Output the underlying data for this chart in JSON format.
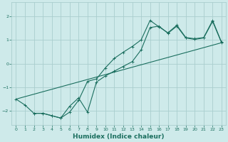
{
  "bg_color": "#ceeaea",
  "grid_color": "#aacece",
  "line_color": "#1a6e5e",
  "xlabel": "Humidex (Indice chaleur)",
  "xlabel_fontsize": 6.5,
  "xlim": [
    -0.5,
    23.5
  ],
  "ylim": [
    -2.6,
    2.6
  ],
  "xticks": [
    0,
    1,
    2,
    3,
    4,
    5,
    6,
    7,
    8,
    9,
    10,
    11,
    12,
    13,
    14,
    15,
    16,
    17,
    18,
    19,
    20,
    21,
    22,
    23
  ],
  "yticks": [
    -2,
    -1,
    0,
    1,
    2
  ],
  "line1_x": [
    0,
    1,
    2,
    3,
    4,
    5,
    6,
    7,
    8,
    9,
    10,
    11,
    12,
    13,
    14,
    15,
    16,
    17,
    18,
    19,
    20,
    21,
    22,
    23
  ],
  "line1_y": [
    -1.5,
    -1.75,
    -2.1,
    -2.1,
    -2.2,
    -2.3,
    -2.05,
    -1.55,
    -0.75,
    -0.65,
    -0.18,
    0.22,
    0.48,
    0.72,
    1.0,
    1.82,
    1.55,
    1.3,
    1.62,
    1.1,
    1.05,
    1.1,
    1.82,
    0.9
  ],
  "line2_x": [
    2,
    3,
    4,
    5,
    6,
    7,
    8,
    9,
    10,
    11,
    12,
    13,
    14,
    15,
    16,
    17,
    18,
    19,
    20,
    21,
    22,
    23
  ],
  "line2_y": [
    -2.1,
    -2.1,
    -2.2,
    -2.3,
    -1.8,
    -1.45,
    -2.05,
    -0.78,
    -0.52,
    -0.32,
    -0.12,
    0.08,
    0.58,
    1.52,
    1.58,
    1.28,
    1.58,
    1.08,
    1.02,
    1.08,
    1.78,
    0.88
  ],
  "line3_x": [
    0,
    23
  ],
  "line3_y": [
    -1.5,
    0.88
  ],
  "marker": "+",
  "markersize": 3,
  "linewidth": 0.8
}
